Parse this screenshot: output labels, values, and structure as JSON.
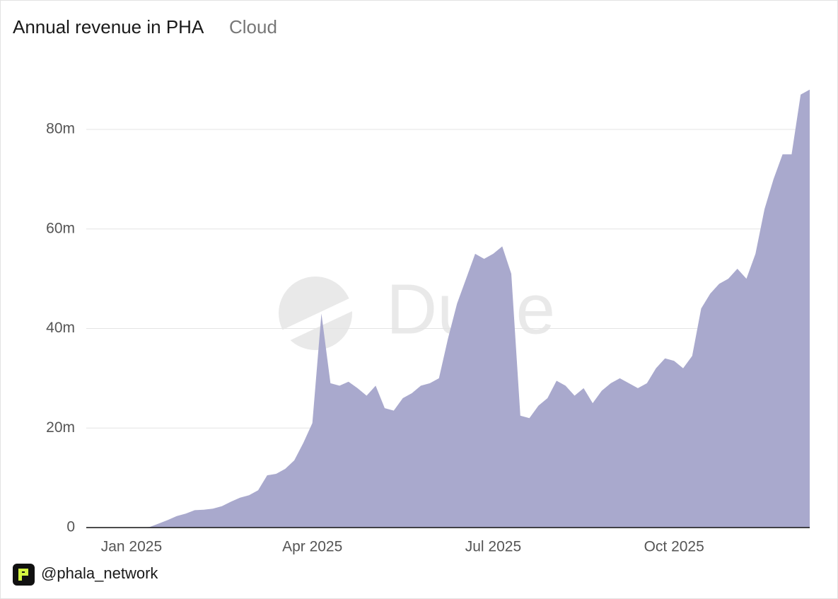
{
  "chart_data": {
    "type": "area",
    "title": "Annual revenue in PHA",
    "subtitle": "Cloud",
    "watermark": "Dune",
    "footer": "@phala_network",
    "categories": [
      null,
      null,
      null,
      null,
      null,
      "Jan 2025",
      null,
      null,
      null,
      null,
      null,
      null,
      null,
      null,
      null,
      null,
      null,
      null,
      null,
      null,
      null,
      null,
      null,
      null,
      null,
      "Apr 2025",
      null,
      null,
      null,
      null,
      null,
      null,
      null,
      null,
      null,
      null,
      null,
      null,
      null,
      null,
      null,
      null,
      null,
      null,
      null,
      "Jul 2025",
      null,
      null,
      null,
      null,
      null,
      null,
      null,
      null,
      null,
      null,
      null,
      null,
      null,
      null,
      null,
      null,
      null,
      null,
      null,
      "Oct 2025",
      null,
      null,
      null,
      null,
      null,
      null,
      null,
      null,
      null,
      null,
      null,
      null,
      null,
      null,
      null
    ],
    "values": [
      0,
      0,
      0,
      0,
      0,
      0,
      0,
      0.1,
      0.8,
      1.5,
      2.3,
      2.8,
      3.5,
      3.6,
      3.8,
      4.3,
      5.2,
      6.0,
      6.5,
      7.5,
      10.5,
      10.8,
      11.8,
      13.5,
      17,
      21,
      43,
      29,
      28.5,
      29.3,
      28,
      26.5,
      28.5,
      24,
      23.5,
      26,
      27,
      28.5,
      29,
      30,
      38,
      45,
      50,
      55,
      54,
      55,
      56.5,
      51,
      22.5,
      22,
      24.5,
      26,
      29.5,
      28.5,
      26.5,
      28,
      25,
      27.5,
      29,
      30,
      29,
      28,
      29,
      32,
      34,
      33.5,
      32,
      34.5,
      44,
      47,
      49,
      50,
      52,
      50,
      55,
      64,
      70,
      75,
      75,
      87,
      88
    ],
    "color": "#a9a9cd",
    "ylim": [
      0,
      93
    ],
    "yticks": [
      0,
      {
        "value": 20,
        "label": "20m"
      },
      {
        "value": 40,
        "label": "40m"
      },
      {
        "value": 60,
        "label": "60m"
      },
      {
        "value": 80,
        "label": "80m"
      }
    ],
    "grid": true
  }
}
